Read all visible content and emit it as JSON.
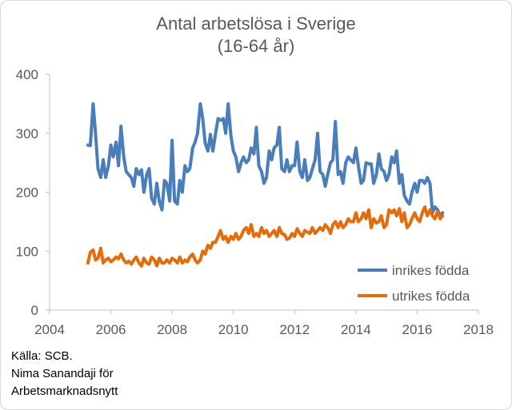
{
  "title_line1": "Antal arbetslösa i Sverige",
  "title_line2": "(16-64 år)",
  "source": {
    "line1": "Källa: SCB.",
    "line2": "Nima Sanandaji för",
    "line3": "Arbetsmarknadsnytt"
  },
  "colors": {
    "inrikes": "#4a7ebb",
    "utrikes": "#e46c0a",
    "axis": "#bfbfbf",
    "tick_text": "#595959"
  },
  "chart_data": {
    "type": "line",
    "title": "Antal arbetslösa i Sverige (16-64 år)",
    "xlim": [
      2004,
      2018
    ],
    "ylim": [
      0,
      400
    ],
    "x_ticks": [
      "2004",
      "2006",
      "2008",
      "2010",
      "2012",
      "2014",
      "2016",
      "2018"
    ],
    "y_ticks": [
      "0",
      "100",
      "200",
      "300",
      "400"
    ],
    "grid": false,
    "legend": "bottom-right",
    "series": [
      {
        "name": "inrikes födda",
        "points": [
          [
            2005.25,
            280
          ],
          [
            2005.33,
            279
          ],
          [
            2005.42,
            350
          ],
          [
            2005.5,
            300
          ],
          [
            2005.58,
            240
          ],
          [
            2005.67,
            225
          ],
          [
            2005.75,
            255
          ],
          [
            2005.83,
            225
          ],
          [
            2005.92,
            245
          ],
          [
            2006.0,
            280
          ],
          [
            2006.08,
            260
          ],
          [
            2006.17,
            285
          ],
          [
            2006.25,
            245
          ],
          [
            2006.33,
            312
          ],
          [
            2006.42,
            260
          ],
          [
            2006.5,
            235
          ],
          [
            2006.58,
            230
          ],
          [
            2006.67,
            225
          ],
          [
            2006.75,
            210
          ],
          [
            2006.83,
            240
          ],
          [
            2006.92,
            230
          ],
          [
            2007.0,
            238
          ],
          [
            2007.08,
            200
          ],
          [
            2007.17,
            230
          ],
          [
            2007.25,
            240
          ],
          [
            2007.33,
            190
          ],
          [
            2007.42,
            180
          ],
          [
            2007.5,
            215
          ],
          [
            2007.58,
            185
          ],
          [
            2007.67,
            170
          ],
          [
            2007.75,
            220
          ],
          [
            2007.83,
            215
          ],
          [
            2007.92,
            185
          ],
          [
            2008.0,
            288
          ],
          [
            2008.08,
            185
          ],
          [
            2008.17,
            180
          ],
          [
            2008.25,
            220
          ],
          [
            2008.33,
            200
          ],
          [
            2008.42,
            245
          ],
          [
            2008.5,
            235
          ],
          [
            2008.58,
            240
          ],
          [
            2008.67,
            275
          ],
          [
            2008.75,
            285
          ],
          [
            2008.83,
            300
          ],
          [
            2008.92,
            350
          ],
          [
            2009.0,
            325
          ],
          [
            2009.08,
            283
          ],
          [
            2009.17,
            270
          ],
          [
            2009.25,
            298
          ],
          [
            2009.33,
            270
          ],
          [
            2009.42,
            300
          ],
          [
            2009.5,
            325
          ],
          [
            2009.58,
            322
          ],
          [
            2009.67,
            325
          ],
          [
            2009.75,
            300
          ],
          [
            2009.83,
            350
          ],
          [
            2009.92,
            295
          ],
          [
            2010.0,
            270
          ],
          [
            2010.08,
            260
          ],
          [
            2010.17,
            235
          ],
          [
            2010.25,
            250
          ],
          [
            2010.33,
            260
          ],
          [
            2010.42,
            250
          ],
          [
            2010.5,
            255
          ],
          [
            2010.58,
            275
          ],
          [
            2010.67,
            265
          ],
          [
            2010.75,
            310
          ],
          [
            2010.83,
            245
          ],
          [
            2010.92,
            235
          ],
          [
            2011.0,
            215
          ],
          [
            2011.08,
            225
          ],
          [
            2011.17,
            270
          ],
          [
            2011.25,
            255
          ],
          [
            2011.33,
            275
          ],
          [
            2011.42,
            280
          ],
          [
            2011.5,
            310
          ],
          [
            2011.58,
            240
          ],
          [
            2011.67,
            235
          ],
          [
            2011.75,
            255
          ],
          [
            2011.83,
            235
          ],
          [
            2011.92,
            245
          ],
          [
            2012.0,
            245
          ],
          [
            2012.08,
            285
          ],
          [
            2012.17,
            235
          ],
          [
            2012.25,
            225
          ],
          [
            2012.33,
            255
          ],
          [
            2012.42,
            220
          ],
          [
            2012.5,
            225
          ],
          [
            2012.58,
            240
          ],
          [
            2012.67,
            255
          ],
          [
            2012.75,
            300
          ],
          [
            2012.83,
            235
          ],
          [
            2012.92,
            230
          ],
          [
            2013.0,
            210
          ],
          [
            2013.08,
            230
          ],
          [
            2013.17,
            250
          ],
          [
            2013.25,
            255
          ],
          [
            2013.33,
            320
          ],
          [
            2013.42,
            230
          ],
          [
            2013.5,
            235
          ],
          [
            2013.58,
            215
          ],
          [
            2013.67,
            250
          ],
          [
            2013.75,
            260
          ],
          [
            2013.83,
            255
          ],
          [
            2013.92,
            250
          ],
          [
            2014.0,
            275
          ],
          [
            2014.08,
            245
          ],
          [
            2014.17,
            215
          ],
          [
            2014.25,
            220
          ],
          [
            2014.33,
            250
          ],
          [
            2014.42,
            248
          ],
          [
            2014.5,
            248
          ],
          [
            2014.58,
            215
          ],
          [
            2014.67,
            230
          ],
          [
            2014.75,
            265
          ],
          [
            2014.83,
            240
          ],
          [
            2014.92,
            235
          ],
          [
            2015.0,
            220
          ],
          [
            2015.08,
            230
          ],
          [
            2015.17,
            260
          ],
          [
            2015.25,
            250
          ],
          [
            2015.33,
            270
          ],
          [
            2015.42,
            215
          ],
          [
            2015.5,
            230
          ],
          [
            2015.58,
            195
          ],
          [
            2015.67,
            185
          ],
          [
            2015.75,
            180
          ],
          [
            2015.83,
            200
          ],
          [
            2015.92,
            215
          ],
          [
            2016.0,
            200
          ],
          [
            2016.08,
            220
          ],
          [
            2016.17,
            220
          ],
          [
            2016.25,
            215
          ],
          [
            2016.33,
            225
          ],
          [
            2016.42,
            215
          ],
          [
            2016.5,
            165
          ],
          [
            2016.58,
            175
          ],
          [
            2016.67,
            170
          ],
          [
            2016.75,
            160
          ],
          [
            2016.83,
            165
          ]
        ]
      },
      {
        "name": "utrikes födda",
        "points": [
          [
            2005.25,
            80
          ],
          [
            2005.33,
            98
          ],
          [
            2005.42,
            102
          ],
          [
            2005.5,
            85
          ],
          [
            2005.58,
            88
          ],
          [
            2005.67,
            105
          ],
          [
            2005.75,
            80
          ],
          [
            2005.83,
            85
          ],
          [
            2005.92,
            88
          ],
          [
            2006.0,
            82
          ],
          [
            2006.08,
            85
          ],
          [
            2006.17,
            90
          ],
          [
            2006.25,
            87
          ],
          [
            2006.33,
            95
          ],
          [
            2006.42,
            85
          ],
          [
            2006.5,
            80
          ],
          [
            2006.58,
            83
          ],
          [
            2006.67,
            78
          ],
          [
            2006.75,
            85
          ],
          [
            2006.83,
            90
          ],
          [
            2006.92,
            80
          ],
          [
            2007.0,
            75
          ],
          [
            2007.08,
            88
          ],
          [
            2007.17,
            80
          ],
          [
            2007.25,
            78
          ],
          [
            2007.33,
            90
          ],
          [
            2007.42,
            85
          ],
          [
            2007.5,
            75
          ],
          [
            2007.58,
            88
          ],
          [
            2007.67,
            80
          ],
          [
            2007.75,
            80
          ],
          [
            2007.83,
            85
          ],
          [
            2007.92,
            80
          ],
          [
            2008.0,
            88
          ],
          [
            2008.08,
            85
          ],
          [
            2008.17,
            80
          ],
          [
            2008.25,
            90
          ],
          [
            2008.33,
            80
          ],
          [
            2008.42,
            85
          ],
          [
            2008.5,
            82
          ],
          [
            2008.58,
            90
          ],
          [
            2008.67,
            95
          ],
          [
            2008.75,
            85
          ],
          [
            2008.83,
            80
          ],
          [
            2008.92,
            85
          ],
          [
            2009.0,
            100
          ],
          [
            2009.08,
            95
          ],
          [
            2009.17,
            110
          ],
          [
            2009.25,
            105
          ],
          [
            2009.33,
            115
          ],
          [
            2009.42,
            115
          ],
          [
            2009.5,
            125
          ],
          [
            2009.58,
            135
          ],
          [
            2009.67,
            120
          ],
          [
            2009.75,
            125
          ],
          [
            2009.83,
            115
          ],
          [
            2009.92,
            125
          ],
          [
            2010.0,
            120
          ],
          [
            2010.08,
            130
          ],
          [
            2010.17,
            120
          ],
          [
            2010.25,
            125
          ],
          [
            2010.33,
            135
          ],
          [
            2010.42,
            140
          ],
          [
            2010.5,
            130
          ],
          [
            2010.58,
            145
          ],
          [
            2010.67,
            125
          ],
          [
            2010.75,
            130
          ],
          [
            2010.83,
            125
          ],
          [
            2010.92,
            140
          ],
          [
            2011.0,
            130
          ],
          [
            2011.08,
            135
          ],
          [
            2011.17,
            125
          ],
          [
            2011.25,
            130
          ],
          [
            2011.33,
            135
          ],
          [
            2011.42,
            125
          ],
          [
            2011.5,
            140
          ],
          [
            2011.58,
            130
          ],
          [
            2011.67,
            128
          ],
          [
            2011.75,
            120
          ],
          [
            2011.83,
            122
          ],
          [
            2011.92,
            130
          ],
          [
            2012.0,
            125
          ],
          [
            2012.08,
            138
          ],
          [
            2012.17,
            130
          ],
          [
            2012.25,
            125
          ],
          [
            2012.33,
            135
          ],
          [
            2012.42,
            132
          ],
          [
            2012.5,
            130
          ],
          [
            2012.58,
            140
          ],
          [
            2012.67,
            130
          ],
          [
            2012.75,
            135
          ],
          [
            2012.83,
            140
          ],
          [
            2012.92,
            135
          ],
          [
            2013.0,
            145
          ],
          [
            2013.08,
            140
          ],
          [
            2013.17,
            130
          ],
          [
            2013.25,
            145
          ],
          [
            2013.33,
            150
          ],
          [
            2013.42,
            140
          ],
          [
            2013.5,
            150
          ],
          [
            2013.58,
            140
          ],
          [
            2013.67,
            145
          ],
          [
            2013.75,
            155
          ],
          [
            2013.83,
            150
          ],
          [
            2013.92,
            150
          ],
          [
            2014.0,
            165
          ],
          [
            2014.08,
            150
          ],
          [
            2014.17,
            155
          ],
          [
            2014.25,
            165
          ],
          [
            2014.33,
            155
          ],
          [
            2014.42,
            170
          ],
          [
            2014.5,
            140
          ],
          [
            2014.58,
            155
          ],
          [
            2014.67,
            148
          ],
          [
            2014.75,
            150
          ],
          [
            2014.83,
            160
          ],
          [
            2014.92,
            140
          ],
          [
            2015.0,
            145
          ],
          [
            2015.08,
            170
          ],
          [
            2015.17,
            165
          ],
          [
            2015.25,
            170
          ],
          [
            2015.33,
            160
          ],
          [
            2015.42,
            172
          ],
          [
            2015.5,
            150
          ],
          [
            2015.58,
            165
          ],
          [
            2015.67,
            140
          ],
          [
            2015.75,
            145
          ],
          [
            2015.83,
            155
          ],
          [
            2015.92,
            165
          ],
          [
            2016.0,
            155
          ],
          [
            2016.08,
            150
          ],
          [
            2016.17,
            165
          ],
          [
            2016.25,
            175
          ],
          [
            2016.33,
            160
          ],
          [
            2016.42,
            170
          ],
          [
            2016.5,
            160
          ],
          [
            2016.58,
            155
          ],
          [
            2016.67,
            168
          ],
          [
            2016.75,
            155
          ],
          [
            2016.83,
            160
          ]
        ]
      }
    ]
  }
}
